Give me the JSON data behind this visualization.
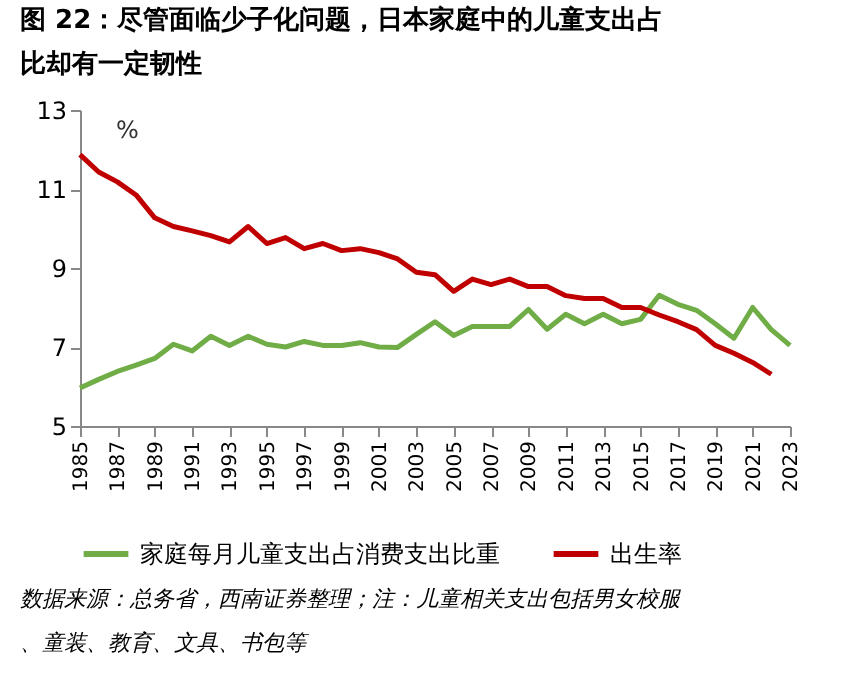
{
  "chart_data": {
    "type": "line",
    "title": "图 22：尽管面临少子化问题，日本家庭中的儿童支出占比却有一定韧性",
    "annotations": [
      "%",
      "数据来源：总务省，西南证券整理；注：儿童相关支出包括男女校服、童装、教育、文具、书包等"
    ],
    "x": [
      1985,
      1986,
      1987,
      1988,
      1989,
      1990,
      1991,
      1992,
      1993,
      1994,
      1995,
      1996,
      1997,
      1998,
      1999,
      2000,
      2001,
      2002,
      2003,
      2004,
      2005,
      2006,
      2007,
      2008,
      2009,
      2010,
      2011,
      2012,
      2013,
      2014,
      2015,
      2016,
      2017,
      2018,
      2019,
      2020,
      2021,
      2022,
      2023
    ],
    "series": [
      {
        "name": "家庭每月儿童支出占消费支出比重",
        "color": "#70ad47",
        "values": [
          5.96,
          6.18,
          6.38,
          6.54,
          6.71,
          7.07,
          6.9,
          7.27,
          7.04,
          7.27,
          7.07,
          7.0,
          7.14,
          7.04,
          7.04,
          7.11,
          7.0,
          6.99,
          7.32,
          7.64,
          7.29,
          7.52,
          7.52,
          7.52,
          7.95,
          7.45,
          7.83,
          7.59,
          7.83,
          7.59,
          7.7,
          8.31,
          8.08,
          7.93,
          7.59,
          7.22,
          8.0,
          7.44,
          7.04
        ]
      },
      {
        "name": "出生率",
        "color": "#c00000",
        "values": [
          11.87,
          11.43,
          11.18,
          10.85,
          10.27,
          10.05,
          9.94,
          9.82,
          9.66,
          10.05,
          9.62,
          9.77,
          9.49,
          9.62,
          9.44,
          9.49,
          9.39,
          9.23,
          8.89,
          8.83,
          8.41,
          8.72,
          8.58,
          8.72,
          8.53,
          8.53,
          8.3,
          8.23,
          8.23,
          8.0,
          8.0,
          7.81,
          7.64,
          7.44,
          7.04,
          6.84,
          6.61,
          6.31,
          null
        ]
      }
    ],
    "xlim": [
      1985,
      2023
    ],
    "xticks": [
      1985,
      1987,
      1989,
      1991,
      1993,
      1995,
      1997,
      1999,
      2001,
      2003,
      2005,
      2007,
      2009,
      2011,
      2013,
      2015,
      2017,
      2019,
      2021,
      2023
    ],
    "ylim": [
      5,
      13
    ],
    "yticks": [
      5,
      7,
      9,
      11,
      13
    ],
    "grid": false,
    "legend": "bottom",
    "marker": "none",
    "line_style": "solid"
  }
}
